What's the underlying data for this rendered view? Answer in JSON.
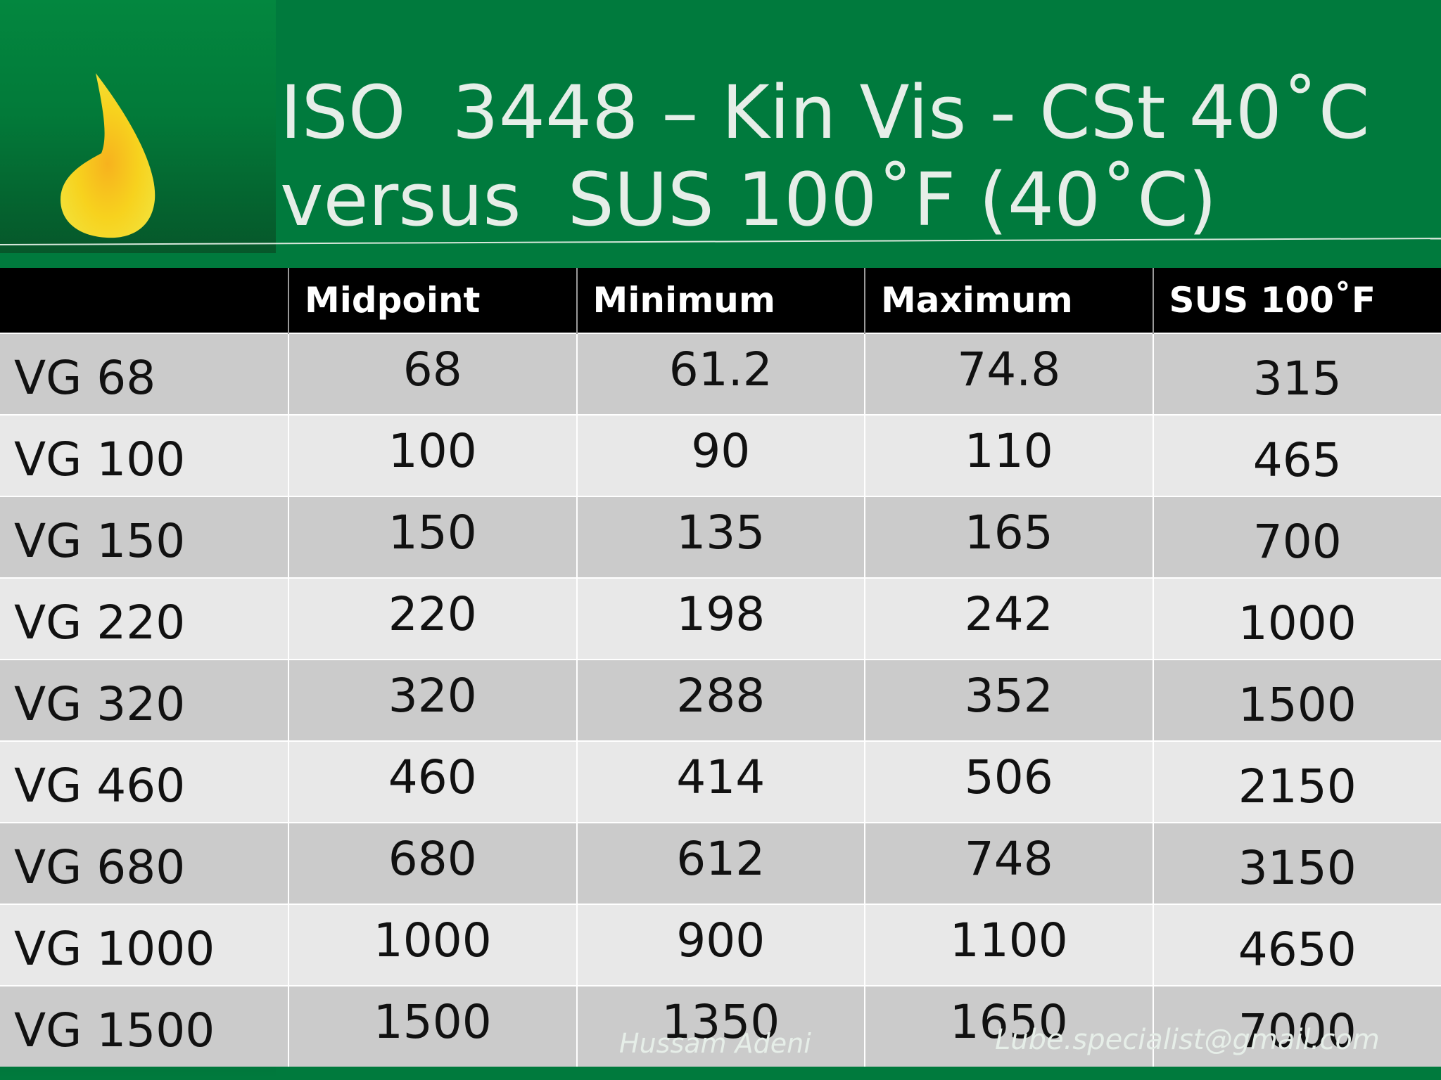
{
  "slide": {
    "title_line1": "ISO  3448 – Kin Vis - CSt 40˚C",
    "title_line2": "versus  SUS 100˚F (40˚C)",
    "footer_name": "Hussam Adeni",
    "footer_email": "Lube.specialist@gmail.com",
    "icon": "oil-drop-icon",
    "colors": {
      "background": "#007a3d",
      "header": "#000000",
      "row_dark": "#cbcbcb",
      "row_light": "#e8e8e8",
      "drop": "#f7d21e"
    }
  },
  "table": {
    "headers": [
      "",
      "Midpoint",
      "Minimum",
      "Maximum",
      "SUS 100˚F"
    ],
    "rows": [
      [
        "VG 68",
        "68",
        "61.2",
        "74.8",
        "315"
      ],
      [
        "VG 100",
        "100",
        "90",
        "110",
        "465"
      ],
      [
        "VG 150",
        "150",
        "135",
        "165",
        "700"
      ],
      [
        "VG 220",
        "220",
        "198",
        "242",
        "1000"
      ],
      [
        "VG 320",
        "320",
        "288",
        "352",
        "1500"
      ],
      [
        "VG 460",
        "460",
        "414",
        "506",
        "2150"
      ],
      [
        "VG 680",
        "680",
        "612",
        "748",
        "3150"
      ],
      [
        "VG 1000",
        "1000",
        "900",
        "1100",
        "4650"
      ],
      [
        "VG 1500",
        "1500",
        "1350",
        "1650",
        "7000"
      ]
    ]
  }
}
